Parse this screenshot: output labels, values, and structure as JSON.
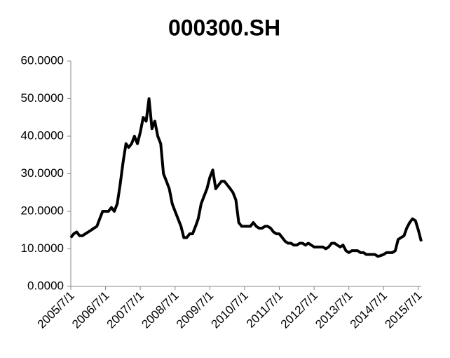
{
  "chart_data": {
    "type": "line",
    "title": "000300.SH",
    "x": [
      "2005/7/1",
      "2005/8/1",
      "2005/9/1",
      "2005/10/1",
      "2005/11/1",
      "2005/12/1",
      "2006/1/1",
      "2006/2/1",
      "2006/3/1",
      "2006/4/1",
      "2006/5/1",
      "2006/6/1",
      "2006/7/1",
      "2006/8/1",
      "2006/9/1",
      "2006/10/1",
      "2006/11/1",
      "2006/12/1",
      "2007/1/1",
      "2007/2/1",
      "2007/3/1",
      "2007/4/1",
      "2007/5/1",
      "2007/6/1",
      "2007/7/1",
      "2007/8/1",
      "2007/9/1",
      "2007/10/1",
      "2007/11/1",
      "2007/12/1",
      "2008/1/1",
      "2008/2/1",
      "2008/3/1",
      "2008/4/1",
      "2008/5/1",
      "2008/6/1",
      "2008/7/1",
      "2008/8/1",
      "2008/9/1",
      "2008/10/1",
      "2008/11/1",
      "2008/12/1",
      "2009/1/1",
      "2009/2/1",
      "2009/3/1",
      "2009/4/1",
      "2009/5/1",
      "2009/6/1",
      "2009/7/1",
      "2009/8/1",
      "2009/9/1",
      "2009/10/1",
      "2009/11/1",
      "2009/12/1",
      "2010/1/1",
      "2010/2/1",
      "2010/3/1",
      "2010/4/1",
      "2010/5/1",
      "2010/6/1",
      "2010/7/1",
      "2010/8/1",
      "2010/9/1",
      "2010/10/1",
      "2010/11/1",
      "2010/12/1",
      "2011/1/1",
      "2011/2/1",
      "2011/3/1",
      "2011/4/1",
      "2011/5/1",
      "2011/6/1",
      "2011/7/1",
      "2011/8/1",
      "2011/9/1",
      "2011/10/1",
      "2011/11/1",
      "2011/12/1",
      "2012/1/1",
      "2012/2/1",
      "2012/3/1",
      "2012/4/1",
      "2012/5/1",
      "2012/6/1",
      "2012/7/1",
      "2012/8/1",
      "2012/9/1",
      "2012/10/1",
      "2012/11/1",
      "2012/12/1",
      "2013/1/1",
      "2013/2/1",
      "2013/3/1",
      "2013/4/1",
      "2013/5/1",
      "2013/6/1",
      "2013/7/1",
      "2013/8/1",
      "2013/9/1",
      "2013/10/1",
      "2013/11/1",
      "2013/12/1",
      "2014/1/1",
      "2014/2/1",
      "2014/3/1",
      "2014/4/1",
      "2014/5/1",
      "2014/6/1",
      "2014/7/1",
      "2014/8/1",
      "2014/9/1",
      "2014/10/1",
      "2014/11/1",
      "2014/12/1",
      "2015/1/1",
      "2015/2/1",
      "2015/3/1",
      "2015/4/1",
      "2015/5/1",
      "2015/6/1",
      "2015/7/1",
      "2015/8/1"
    ],
    "series": [
      {
        "color": "#000000",
        "values": [
          13,
          14,
          14.5,
          13.5,
          13.5,
          14,
          14.5,
          15,
          15.5,
          16,
          18,
          20,
          20,
          20,
          21,
          20,
          22,
          27,
          33,
          38,
          37,
          38,
          40,
          38,
          41,
          45,
          44,
          50,
          42,
          44,
          40,
          38,
          30,
          28,
          26,
          22,
          20,
          18,
          16,
          13,
          13,
          14,
          14,
          16,
          18,
          22,
          24,
          26,
          29,
          31,
          26,
          27,
          28,
          28,
          27,
          26,
          25,
          23,
          17,
          16,
          16,
          16,
          16,
          17,
          16,
          15.5,
          15.5,
          16,
          16,
          15.5,
          14.5,
          14,
          14,
          13,
          12,
          11.5,
          11.5,
          11,
          11,
          11.5,
          11.5,
          11,
          11.5,
          11,
          10.5,
          10.5,
          10.5,
          10.5,
          10,
          10.5,
          11.5,
          11.5,
          11,
          10.5,
          11,
          9.5,
          9,
          9.5,
          9.5,
          9.5,
          9,
          9,
          8.5,
          8.5,
          8.5,
          8.5,
          8,
          8.2,
          8.5,
          9,
          9,
          9,
          9.5,
          12.5,
          13,
          13.5,
          15.5,
          17,
          18,
          17.5,
          15,
          12
        ]
      }
    ],
    "xlim": [
      "2005/7/1",
      "2015/8/1"
    ],
    "xticks": [
      "2005/7/1",
      "2006/7/1",
      "2007/7/1",
      "2008/7/1",
      "2009/7/1",
      "2010/7/1",
      "2011/7/1",
      "2012/7/1",
      "2013/7/1",
      "2014/7/1",
      "2015/7/1"
    ],
    "ylim": [
      0,
      60
    ],
    "yticks": [
      {
        "value": 0,
        "label": "0.0000"
      },
      {
        "value": 10,
        "label": "10.0000"
      },
      {
        "value": 20,
        "label": "20.0000"
      },
      {
        "value": 30,
        "label": "30.0000"
      },
      {
        "value": 40,
        "label": "40.0000"
      },
      {
        "value": 50,
        "label": "50.0000"
      },
      {
        "value": 60,
        "label": "60.0000"
      }
    ],
    "grid": false
  }
}
